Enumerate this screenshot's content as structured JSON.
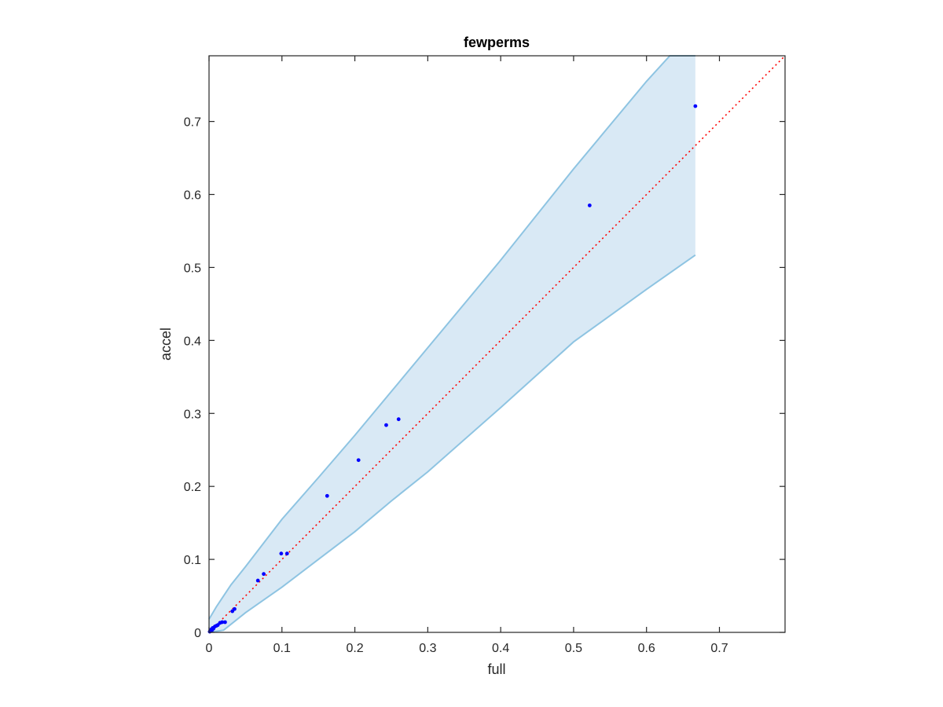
{
  "chart_data": {
    "type": "scatter",
    "title": "fewperms",
    "xlabel": "full",
    "ylabel": "accel",
    "xlim": [
      0,
      0.79
    ],
    "ylim": [
      0,
      0.79
    ],
    "xticks": [
      0,
      0.1,
      0.2,
      0.3,
      0.4,
      0.5,
      0.6,
      0.7
    ],
    "yticks": [
      0,
      0.1,
      0.2,
      0.3,
      0.4,
      0.5,
      0.6,
      0.7
    ],
    "tick_labels": [
      "0",
      "0.1",
      "0.2",
      "0.3",
      "0.4",
      "0.5",
      "0.6",
      "0.7"
    ],
    "grid": false,
    "colors": {
      "points": "#0000ff",
      "reference_line": "#ff0000",
      "band_fill": "#d9e9f5",
      "band_edge": "#8ec4e2",
      "axes": "#262626"
    },
    "points": [
      {
        "x": 0.001,
        "y": 0.001
      },
      {
        "x": 0.002,
        "y": 0.002
      },
      {
        "x": 0.003,
        "y": 0.004
      },
      {
        "x": 0.004,
        "y": 0.003
      },
      {
        "x": 0.005,
        "y": 0.006
      },
      {
        "x": 0.006,
        "y": 0.005
      },
      {
        "x": 0.008,
        "y": 0.008
      },
      {
        "x": 0.01,
        "y": 0.009
      },
      {
        "x": 0.012,
        "y": 0.01
      },
      {
        "x": 0.015,
        "y": 0.013
      },
      {
        "x": 0.018,
        "y": 0.014
      },
      {
        "x": 0.022,
        "y": 0.014
      },
      {
        "x": 0.032,
        "y": 0.029
      },
      {
        "x": 0.035,
        "y": 0.032
      },
      {
        "x": 0.067,
        "y": 0.071
      },
      {
        "x": 0.075,
        "y": 0.08
      },
      {
        "x": 0.099,
        "y": 0.108
      },
      {
        "x": 0.107,
        "y": 0.108
      },
      {
        "x": 0.162,
        "y": 0.187
      },
      {
        "x": 0.205,
        "y": 0.236
      },
      {
        "x": 0.243,
        "y": 0.284
      },
      {
        "x": 0.26,
        "y": 0.292
      },
      {
        "x": 0.522,
        "y": 0.585
      },
      {
        "x": 0.667,
        "y": 0.721
      }
    ],
    "reference_line": {
      "from": [
        0,
        0
      ],
      "to": [
        0.79,
        0.79
      ],
      "style": "dotted"
    },
    "band": {
      "upper": [
        {
          "x": 0,
          "y": 0.018
        },
        {
          "x": 0.01,
          "y": 0.035
        },
        {
          "x": 0.03,
          "y": 0.065
        },
        {
          "x": 0.05,
          "y": 0.09
        },
        {
          "x": 0.1,
          "y": 0.155
        },
        {
          "x": 0.15,
          "y": 0.212
        },
        {
          "x": 0.2,
          "y": 0.27
        },
        {
          "x": 0.25,
          "y": 0.33
        },
        {
          "x": 0.3,
          "y": 0.39
        },
        {
          "x": 0.4,
          "y": 0.51
        },
        {
          "x": 0.5,
          "y": 0.635
        },
        {
          "x": 0.6,
          "y": 0.755
        },
        {
          "x": 0.632,
          "y": 0.79
        },
        {
          "x": 0.667,
          "y": 0.79
        }
      ],
      "lower": [
        {
          "x": 0,
          "y": 0
        },
        {
          "x": 0.02,
          "y": 0.003
        },
        {
          "x": 0.05,
          "y": 0.027
        },
        {
          "x": 0.1,
          "y": 0.062
        },
        {
          "x": 0.15,
          "y": 0.1
        },
        {
          "x": 0.2,
          "y": 0.138
        },
        {
          "x": 0.25,
          "y": 0.18
        },
        {
          "x": 0.3,
          "y": 0.22
        },
        {
          "x": 0.4,
          "y": 0.308
        },
        {
          "x": 0.5,
          "y": 0.398
        },
        {
          "x": 0.6,
          "y": 0.47
        },
        {
          "x": 0.667,
          "y": 0.517
        }
      ]
    }
  }
}
